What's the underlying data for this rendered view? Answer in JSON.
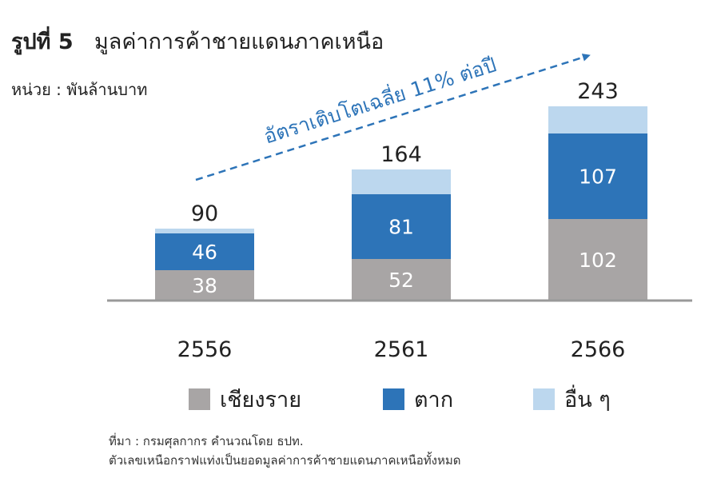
{
  "header": {
    "figure_label": "รูปที่ 5",
    "title": "มูลค่าการค้าชายแดนภาคเหนือ",
    "unit": "หน่วย : พันล้านบาท"
  },
  "footer": {
    "source": "ที่มา : กรมศุลกากร คำนวณโดย ธปท.",
    "note": "ตัวเลขเหนือกราฟแท่งเป็นยอดมูลค่าการค้าชายแดนภาคเหนือทั้งหมด"
  },
  "chart_data": {
    "type": "bar",
    "stacked": true,
    "categories": [
      "2556",
      "2561",
      "2566"
    ],
    "series": [
      {
        "name": "เชียงราย",
        "values": [
          38,
          52,
          102
        ],
        "color": "#a8a5a5",
        "show_labels": true
      },
      {
        "name": "ตาก",
        "values": [
          46,
          81,
          107
        ],
        "color": "#2d74b8",
        "show_labels": true
      },
      {
        "name": "อื่น ๆ",
        "values": [
          6,
          31,
          34
        ],
        "color": "#bcd7ee",
        "show_labels": false
      }
    ],
    "totals": [
      90,
      164,
      243
    ],
    "annotation": {
      "text": "อัตราเติบโตเฉลี่ย 11% ต่อปี",
      "color": "#2d74b8"
    },
    "legend_position": "bottom",
    "grid": false,
    "ylim": [
      0,
      260
    ]
  }
}
